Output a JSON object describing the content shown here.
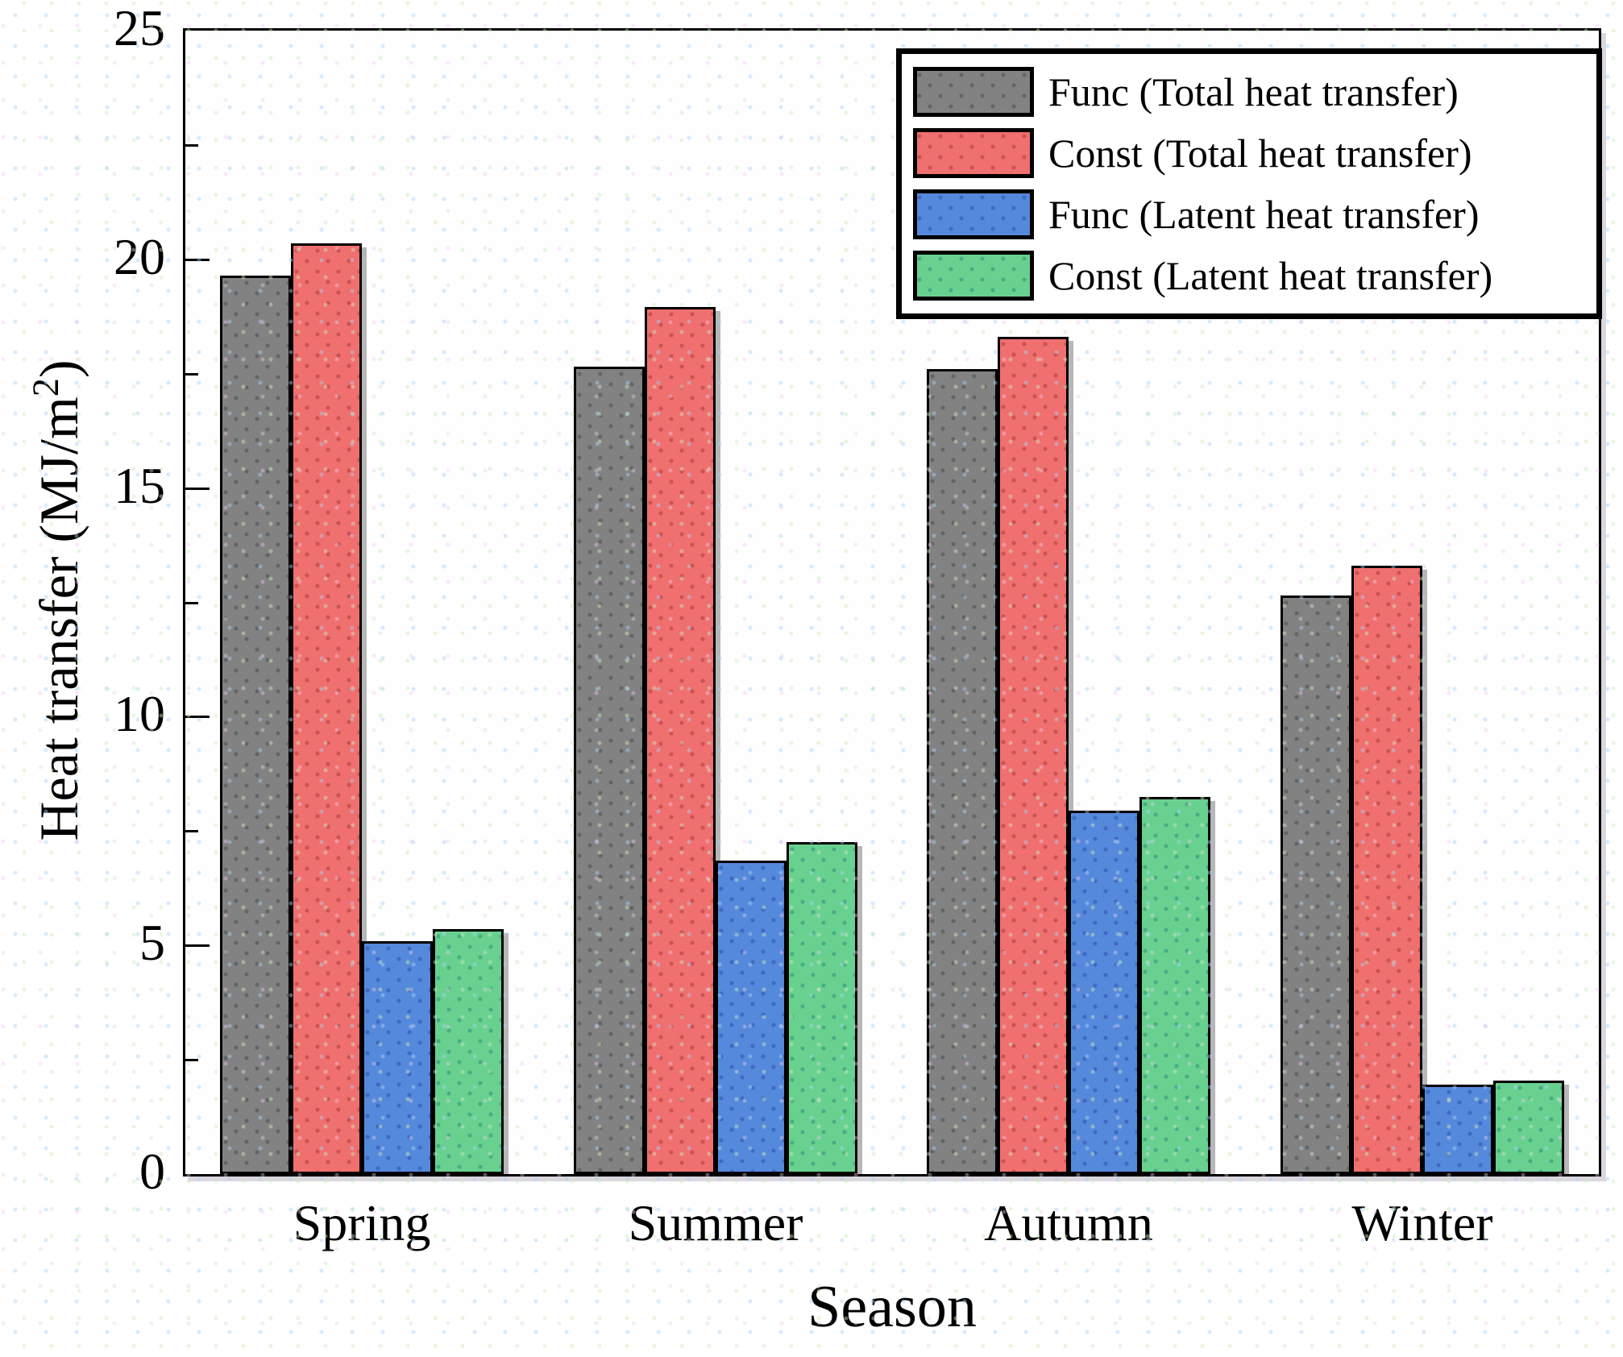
{
  "chart_data": {
    "type": "bar",
    "title": "",
    "xlabel": "Season",
    "ylabel": "Heat transfer (MJ/m2)",
    "ylabel_parts": {
      "base": "Heat transfer (MJ/m",
      "sup": "2",
      "end": ")"
    },
    "ylim": [
      0,
      25
    ],
    "yticks": [
      0,
      5,
      10,
      15,
      20,
      25
    ],
    "minor_yticks": [
      2.5,
      7.5,
      12.5,
      17.5,
      22.5
    ],
    "grid": false,
    "legend_position": "top-right",
    "categories": [
      "Spring",
      "Summer",
      "Autumn",
      "Winter"
    ],
    "series": [
      {
        "name": "Func (Total heat transfer)",
        "color": "#828282",
        "dot_color": "rgba(40,50,45,0.35)",
        "values": [
          19.65,
          17.65,
          17.6,
          12.65
        ]
      },
      {
        "name": "Const (Total heat transfer)",
        "color": "#f06f6f",
        "dot_color": "rgba(150,40,40,0.40)",
        "values": [
          20.35,
          18.95,
          18.3,
          13.3
        ]
      },
      {
        "name": "Func (Latent heat transfer)",
        "color": "#5589db",
        "dot_color": "rgba(30,60,160,0.40)",
        "values": [
          5.1,
          6.85,
          7.95,
          1.95
        ]
      },
      {
        "name": "Const (Latent heat transfer)",
        "color": "#68d190",
        "dot_color": "rgba(25,120,110,0.40)",
        "values": [
          5.35,
          7.25,
          8.25,
          2.05
        ]
      }
    ]
  }
}
